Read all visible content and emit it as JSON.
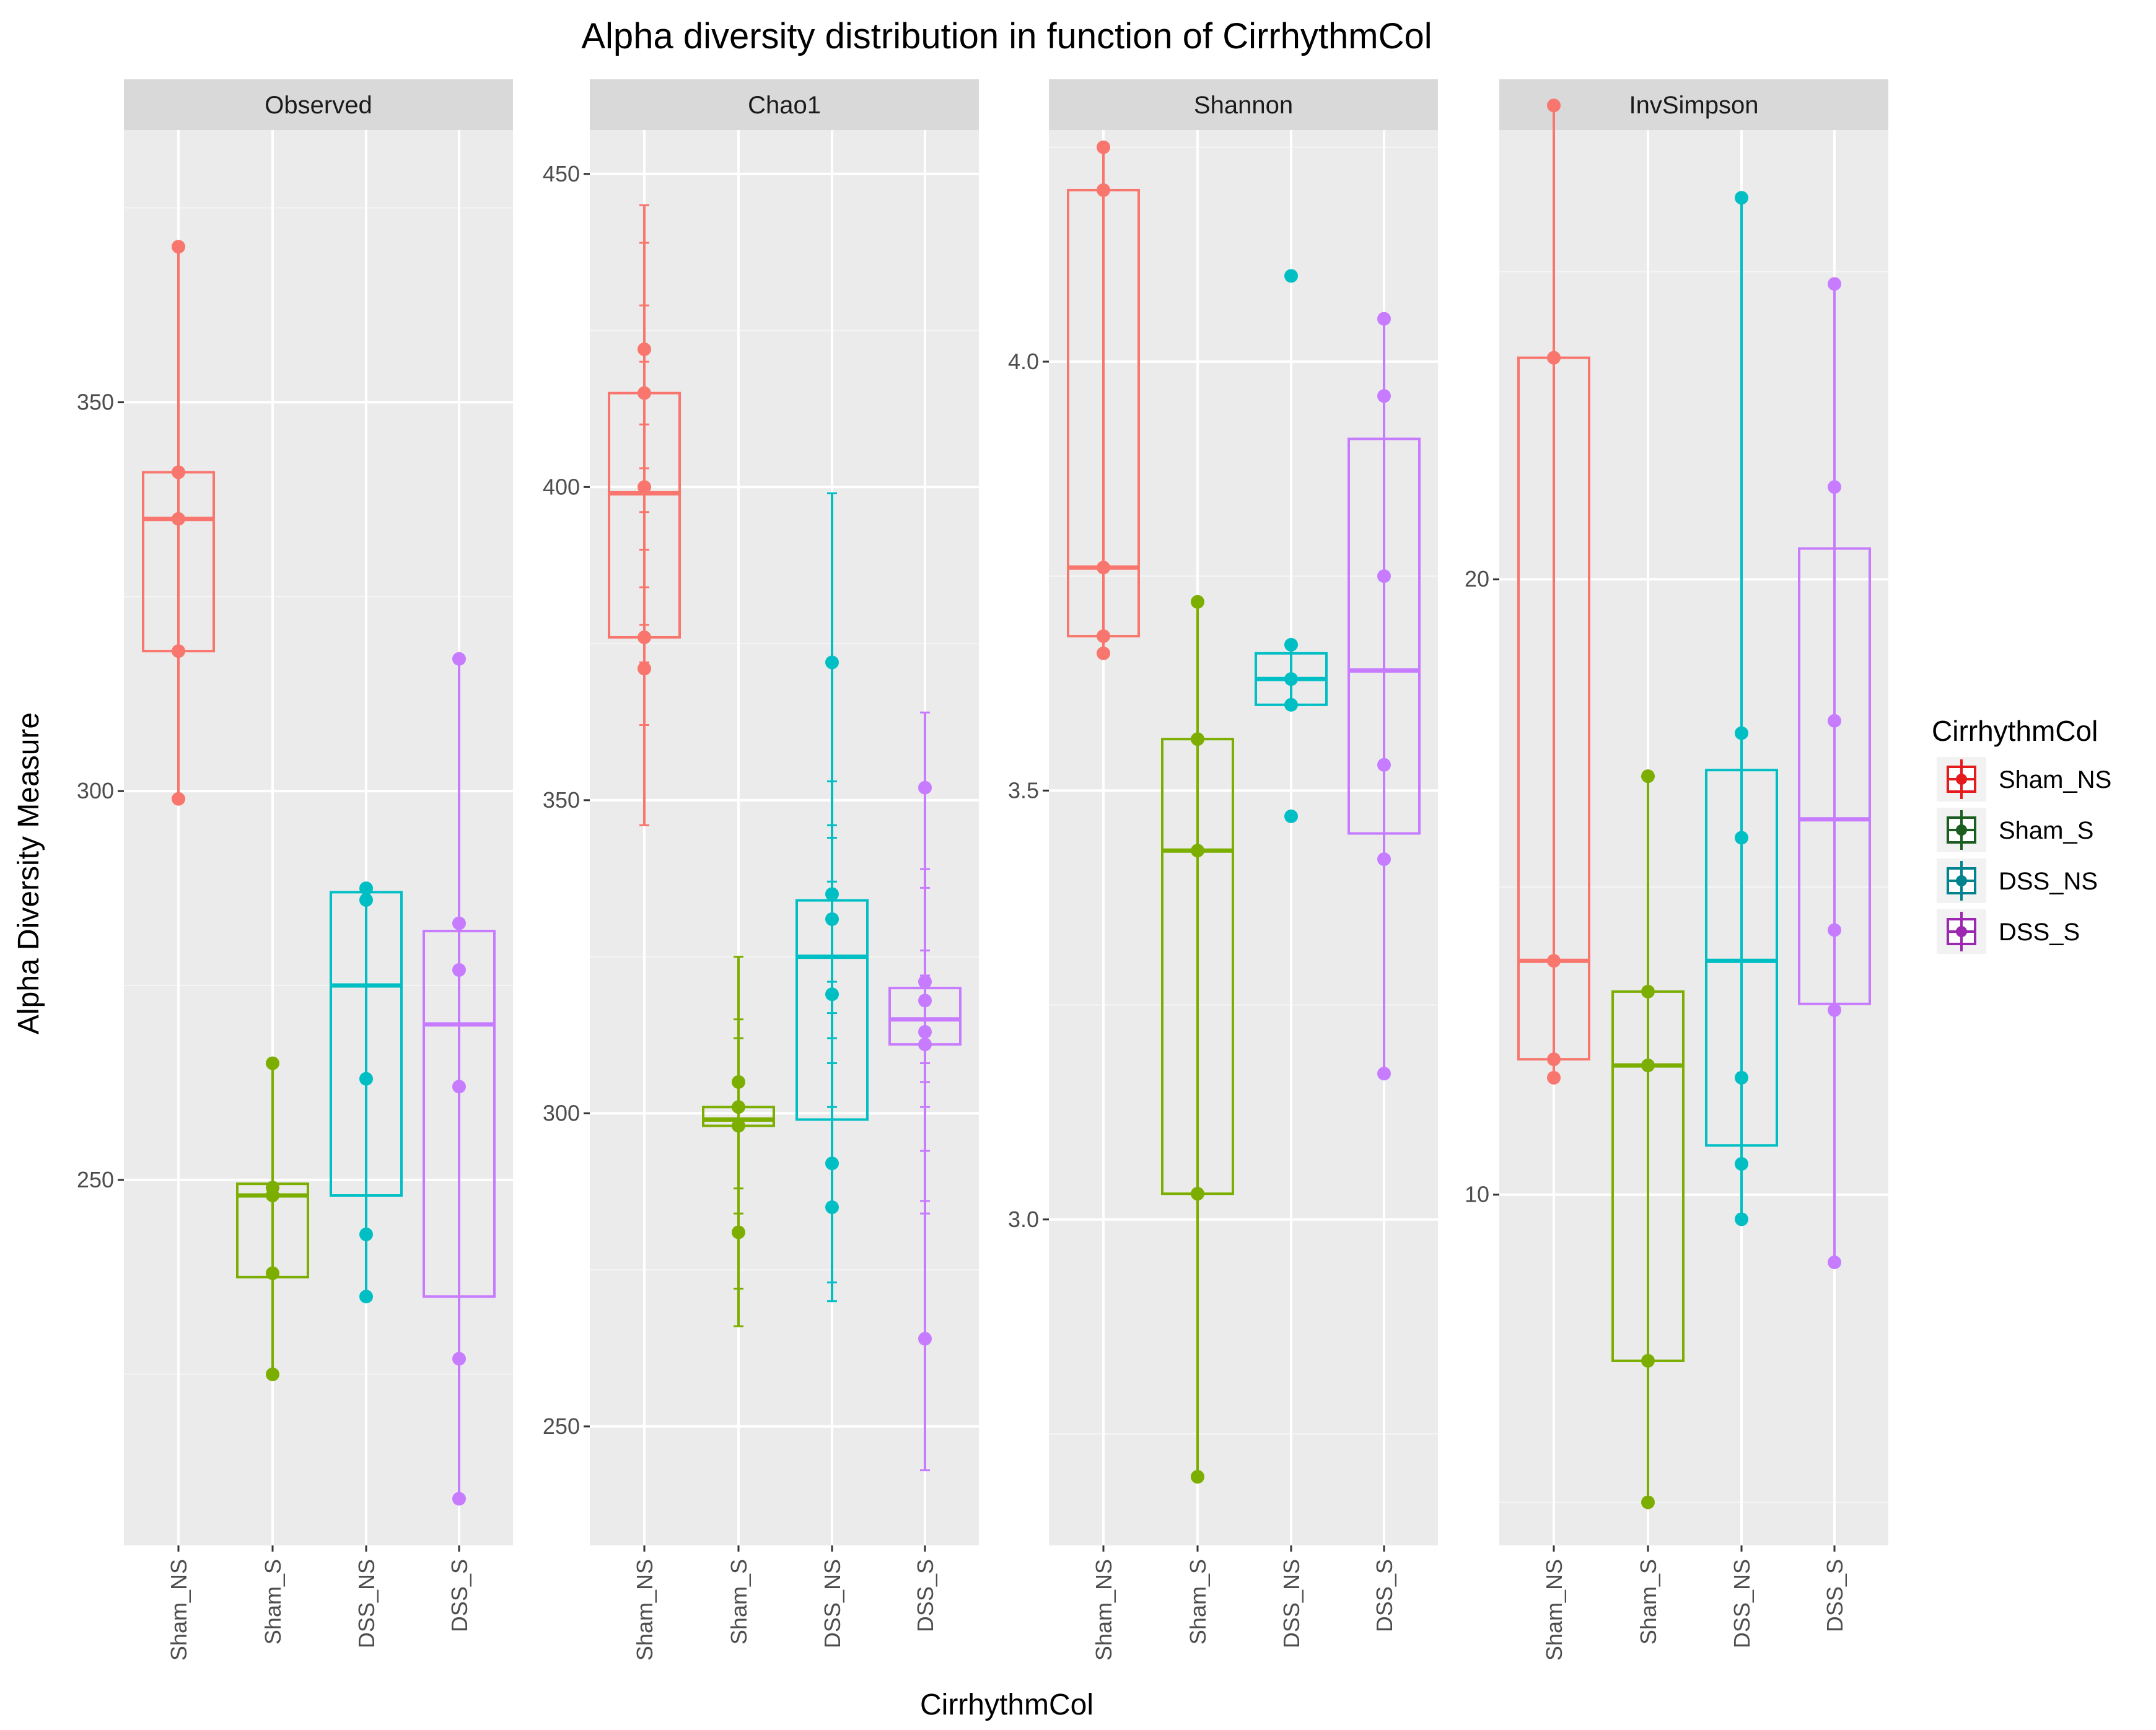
{
  "chart_data": {
    "type": "boxplot",
    "title": "Alpha diversity distribution in function of CirrhythmCol",
    "xlabel": "CirrhythmCol",
    "ylabel": "Alpha Diversity Measure",
    "categories": [
      "Sham_NS",
      "Sham_S",
      "DSS_NS",
      "DSS_S"
    ],
    "legend": {
      "title": "CirrhythmCol",
      "position": "right",
      "items": [
        {
          "label": "Sham_NS",
          "color": "#F8766D",
          "dark": "#E41A1C"
        },
        {
          "label": "Sham_S",
          "color": "#7CAE00",
          "dark": "#1B5E20"
        },
        {
          "label": "DSS_NS",
          "color": "#00BFC4",
          "dark": "#00838F"
        },
        {
          "label": "DSS_S",
          "color": "#C77CFF",
          "dark": "#9C27B0"
        }
      ]
    },
    "panels": [
      {
        "name": "Observed",
        "ylim": [
          203,
          385
        ],
        "ticks": [
          250,
          300,
          350
        ],
        "tick_labels": [
          "250",
          "300",
          "350"
        ],
        "groups": [
          {
            "category": "Sham_NS",
            "q1": 318,
            "median": 335,
            "q3": 341,
            "wlow": 299,
            "whigh": 370,
            "points": [
              370,
              341,
              335,
              318,
              299
            ],
            "errbars": []
          },
          {
            "category": "Sham_S",
            "q1": 237.5,
            "median": 248,
            "q3": 249.5,
            "wlow": 225,
            "whigh": 265,
            "points": [
              265,
              249,
              248,
              238,
              225
            ],
            "errbars": []
          },
          {
            "category": "DSS_NS",
            "q1": 248,
            "median": 275,
            "q3": 287,
            "wlow": 234.5,
            "whigh": 287.5,
            "points": [
              287.5,
              286,
              263,
              243,
              235
            ],
            "errbars": []
          },
          {
            "category": "DSS_S",
            "q1": 235,
            "median": 270,
            "q3": 282,
            "wlow": 209,
            "whigh": 317,
            "points": [
              317,
              283,
              277,
              262,
              227,
              209
            ],
            "errbars": []
          }
        ]
      },
      {
        "name": "Chao1",
        "ylim": [
          231,
          457
        ],
        "ticks": [
          250,
          300,
          350,
          400,
          450
        ],
        "tick_labels": [
          "250",
          "300",
          "350",
          "400",
          "450"
        ],
        "groups": [
          {
            "category": "Sham_NS",
            "q1": 376,
            "median": 399,
            "q3": 415,
            "wlow": 346,
            "whigh": 445,
            "points": [
              422,
              415,
              400,
              376,
              371
            ],
            "errbars": [
              445,
              439,
              429,
              420,
              410,
              403,
              396,
              390,
              384,
              378,
              372,
              362,
              346
            ]
          },
          {
            "category": "Sham_S",
            "q1": 298,
            "median": 299,
            "q3": 301,
            "wlow": 266,
            "whigh": 325,
            "points": [
              305,
              301,
              298,
              281
            ],
            "errbars": [
              325,
              315,
              312,
              288,
              284,
              272,
              266
            ]
          },
          {
            "category": "DSS_NS",
            "q1": 299,
            "median": 325,
            "q3": 334,
            "wlow": 270,
            "whigh": 399,
            "points": [
              372,
              335,
              331,
              319,
              292,
              285
            ],
            "errbars": [
              399,
              353,
              346,
              344,
              337,
              321,
              316,
              312,
              308,
              301,
              273,
              270
            ]
          },
          {
            "category": "DSS_S",
            "q1": 311,
            "median": 315,
            "q3": 320,
            "wlow": 243,
            "whigh": 364,
            "points": [
              352,
              321,
              318,
              313,
              311,
              264
            ],
            "errbars": [
              364,
              339,
              336,
              326,
              322,
              308,
              305,
              301,
              294,
              286,
              284,
              243
            ]
          }
        ]
      },
      {
        "name": "Shannon",
        "ylim": [
          2.62,
          4.27
        ],
        "ticks": [
          3.0,
          3.5,
          4.0
        ],
        "tick_labels": [
          "3.0",
          "3.5",
          "4.0"
        ],
        "groups": [
          {
            "category": "Sham_NS",
            "q1": 3.68,
            "median": 3.76,
            "q3": 4.2,
            "wlow": 3.66,
            "whigh": 4.25,
            "points": [
              4.25,
              4.2,
              3.76,
              3.68,
              3.66
            ],
            "errbars": []
          },
          {
            "category": "Sham_S",
            "q1": 3.03,
            "median": 3.43,
            "q3": 3.56,
            "wlow": 2.7,
            "whigh": 3.72,
            "points": [
              3.72,
              3.56,
              3.43,
              3.03,
              2.7
            ],
            "errbars": []
          },
          {
            "category": "DSS_NS",
            "q1": 3.6,
            "median": 3.63,
            "q3": 3.66,
            "wlow": 3.6,
            "whigh": 3.67,
            "points": [
              4.1,
              3.67,
              3.63,
              3.6,
              3.47
            ],
            "errbars": []
          },
          {
            "category": "DSS_S",
            "q1": 3.45,
            "median": 3.64,
            "q3": 3.91,
            "wlow": 3.17,
            "whigh": 4.05,
            "points": [
              4.05,
              3.96,
              3.75,
              3.53,
              3.42,
              3.17
            ],
            "errbars": []
          }
        ]
      },
      {
        "name": "InvSimpson",
        "ylim": [
          4.3,
          27.3
        ],
        "ticks": [
          10,
          20
        ],
        "tick_labels": [
          "10",
          "20"
        ],
        "groups": [
          {
            "category": "Sham_NS",
            "q1": 12.2,
            "median": 13.8,
            "q3": 23.6,
            "wlow": 11.9,
            "whigh": 27.7,
            "points": [
              27.7,
              23.6,
              13.8,
              12.2,
              11.9
            ],
            "errbars": []
          },
          {
            "category": "Sham_S",
            "q1": 7.3,
            "median": 12.1,
            "q3": 13.3,
            "wlow": 5.0,
            "whigh": 16.8,
            "points": [
              16.8,
              13.3,
              12.1,
              7.3,
              5.0
            ],
            "errbars": []
          },
          {
            "category": "DSS_NS",
            "q1": 10.8,
            "median": 13.8,
            "q3": 16.9,
            "wlow": 9.6,
            "whigh": 26.2,
            "points": [
              26.2,
              17.5,
              15.8,
              11.9,
              10.5,
              9.6
            ],
            "errbars": []
          },
          {
            "category": "DSS_S",
            "q1": 13.1,
            "median": 16.1,
            "q3": 20.5,
            "wlow": 8.9,
            "whigh": 24.8,
            "points": [
              24.8,
              21.5,
              17.7,
              14.3,
              13.0,
              8.9
            ],
            "errbars": []
          }
        ]
      }
    ]
  }
}
